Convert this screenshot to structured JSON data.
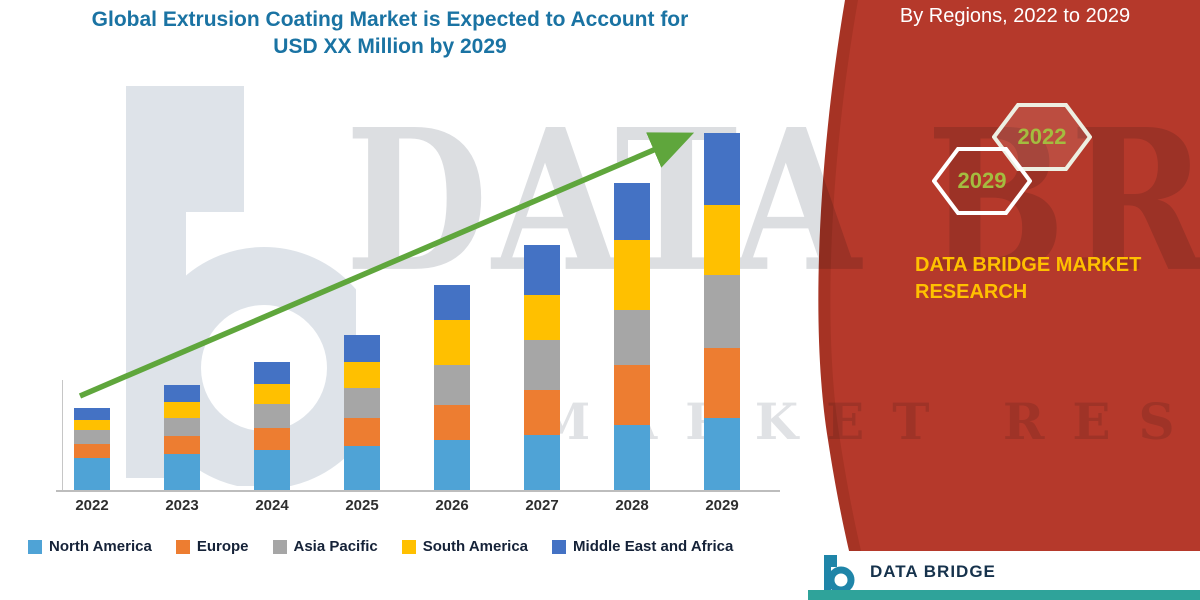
{
  "title": {
    "line1": "Global Extrusion Coating Market is Expected to Account for",
    "line2": "USD XX Million by 2029"
  },
  "side_panel": {
    "heading": "By Regions, 2022 to 2029",
    "hex_year_top": "2022",
    "hex_year_bottom": "2029",
    "brand_line1": "DATA BRIDGE MARKET",
    "brand_line2": "RESEARCH",
    "panel_color": "#B5392B",
    "panel_edge_color": "#A63324",
    "heading_color": "#FFFFFF",
    "brand_color": "#FFC000",
    "hex_label_color": "#A4BC3F"
  },
  "watermark": {
    "line1": "DATA BRIDGE",
    "line2": "MARKET RESEARCH"
  },
  "footer_logo": {
    "name": "DATA BRIDGE",
    "accent_color": "#2FA39A",
    "logo_color": "#1F85A8"
  },
  "chart_data": {
    "type": "bar",
    "stacked": true,
    "title": "Global Extrusion Coating Market is Expected to Account for USD XX Million by 2029",
    "categories": [
      "2022",
      "2023",
      "2024",
      "2025",
      "2026",
      "2027",
      "2028",
      "2029"
    ],
    "series": [
      {
        "name": "North America",
        "color": "#4FA3D6",
        "values": [
          3.2,
          3.6,
          4.0,
          4.4,
          5.0,
          5.5,
          6.5,
          7.2
        ]
      },
      {
        "name": "Europe",
        "color": "#ED7D31",
        "values": [
          1.4,
          1.8,
          2.2,
          2.8,
          3.5,
          4.5,
          6.0,
          7.0
        ]
      },
      {
        "name": "Asia Pacific",
        "color": "#A6A6A6",
        "values": [
          1.4,
          1.8,
          2.4,
          3.0,
          4.0,
          5.0,
          5.5,
          7.3
        ]
      },
      {
        "name": "South America",
        "color": "#FFC000",
        "values": [
          1.0,
          1.6,
          2.0,
          2.6,
          4.5,
          4.5,
          7.0,
          7.0
        ]
      },
      {
        "name": "Middle East and Africa",
        "color": "#4472C4",
        "values": [
          1.2,
          1.7,
          2.2,
          2.7,
          3.5,
          5.0,
          5.7,
          7.2
        ]
      }
    ],
    "xlabel": "",
    "ylabel": "",
    "ylim": [
      0,
      38
    ],
    "units": "relative (no value axis shown; market size labeled USD XX Million)",
    "grid": false,
    "legend_position": "bottom",
    "annotations": [
      "green upward trend arrow"
    ]
  }
}
